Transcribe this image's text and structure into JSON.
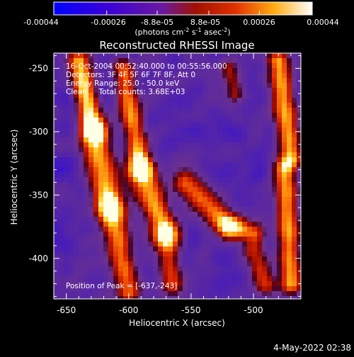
{
  "window": {
    "date_stamp": "4-May-2022 02:38"
  },
  "colorbar": {
    "tick_labels": [
      "-0.00044",
      "-0.00026",
      "-8.8e-05",
      "8.8e-05",
      "0.00026",
      "0.00044"
    ],
    "unit_label": {
      "main": "(photons cm",
      "exp1": "-2",
      "mid": " s",
      "exp2": "-1",
      "mid2": " asec",
      "exp3": "-2",
      "end": ")"
    },
    "range": [
      -0.00044,
      0.00044
    ]
  },
  "chart_data": {
    "type": "heatmap",
    "title": "Reconstructed RHESSI Image",
    "xlabel": "Heliocentric X (arcsec)",
    "ylabel": "Heliocentric Y (arcsec)",
    "xlim": [
      -660,
      -462
    ],
    "ylim": [
      -432,
      -238
    ],
    "x_ticks": [
      -650,
      -600,
      -550,
      -500
    ],
    "y_ticks": [
      -250,
      -300,
      -350,
      -400
    ],
    "colormap": "rhessi-blue-purple-red-yellow-white",
    "annotations": [
      "16-Oct-2004 00:52:40.000 to 00:55:56.000",
      "Detectors: 3F 4F 5F 6F 7F 8F, Att 0",
      "Energy Range: 25.0 - 50.0 keV",
      "Clean     Total counts: 3.68E+03"
    ],
    "peak_label": "Position of Peak = [-637,-243]",
    "peak": [
      -637,
      -243
    ],
    "bright_features": [
      {
        "x": [
          -644,
          -602
        ],
        "y": [
          -428,
          -252
        ],
        "level": 0.9
      },
      {
        "x": [
          -602,
          -560
        ],
        "y": [
          -420,
          -252
        ],
        "level": 0.85
      },
      {
        "x": [
          -560,
          -520
        ],
        "y": [
          -400,
          -340
        ],
        "level": 0.8
      },
      {
        "x": [
          -490,
          -466
        ],
        "y": [
          -420,
          -240
        ],
        "level": 0.85
      }
    ]
  }
}
